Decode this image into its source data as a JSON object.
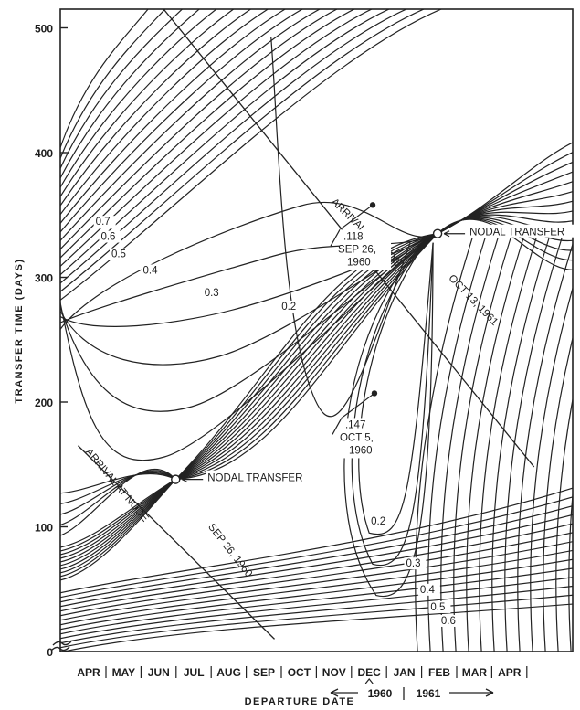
{
  "chart_data": {
    "type": "line",
    "title": "",
    "xlabel": "DEPARTURE DATE",
    "ylabel": "TRANSFER TIME (DAYS)",
    "ylim": [
      0,
      550
    ],
    "y_ticks": [
      "0",
      "100",
      "200",
      "300",
      "400",
      "500"
    ],
    "y_tick_values": [
      0,
      100,
      200,
      300,
      400,
      500
    ],
    "x_ticks": [
      "APR",
      "MAY",
      "JUN",
      "JUL",
      "AUG",
      "SEP",
      "OCT",
      "NOV",
      "DEC",
      "JAN",
      "FEB",
      "MAR",
      "APR"
    ],
    "year_labels": [
      "1960",
      "1961"
    ],
    "grid": false,
    "legend": "none",
    "contour_levels": [
      0.2,
      0.3,
      0.4,
      0.5,
      0.6,
      0.7
    ],
    "contour_labels": [
      {
        "text": "0.7",
        "x": 0.2,
        "y": 342
      },
      {
        "text": "0.6",
        "x": 0.35,
        "y": 330
      },
      {
        "text": "0.5",
        "x": 0.65,
        "y": 316
      },
      {
        "text": "0.4",
        "x": 1.55,
        "y": 303
      },
      {
        "text": "0.3",
        "x": 3.3,
        "y": 285
      },
      {
        "text": "0.2",
        "x": 5.5,
        "y": 274
      },
      {
        "text": "0.2",
        "x": 8.05,
        "y": 102
      },
      {
        "text": "0.3",
        "x": 9.05,
        "y": 68
      },
      {
        "text": "0.4",
        "x": 9.45,
        "y": 47
      },
      {
        "text": "0.5",
        "x": 9.75,
        "y": 33
      },
      {
        "text": "0.6",
        "x": 10.05,
        "y": 22
      }
    ],
    "reference_lines": [
      {
        "name": "ARRIVAL AT NODE",
        "points": [
          [
            0.5,
            572
          ],
          [
            12.7,
            148
          ]
        ]
      },
      {
        "name": "ARRIVAL AT NODE",
        "points": [
          [
            -0.3,
            165
          ],
          [
            5.3,
            10
          ]
        ]
      }
    ],
    "reference_line_labels": [
      {
        "text": "ARRIVAL AT NODE",
        "x": 6.9,
        "y": 360,
        "angle": 44
      },
      {
        "text": "OCT 13, 1961",
        "x": 10.25,
        "y": 299,
        "angle": 46
      },
      {
        "text": "ARRIVAL AT NODE",
        "x": -0.1,
        "y": 160,
        "angle": 50
      },
      {
        "text": "SEP 26, 1960",
        "x": 3.4,
        "y": 100,
        "angle": 52
      }
    ],
    "nodal_points": [
      {
        "label": "NODAL TRANSFER",
        "x": 2.48,
        "y": 138
      },
      {
        "label": "NODAL TRANSFER",
        "x": 9.95,
        "y": 335
      }
    ],
    "minima": [
      {
        "value": ".118",
        "date": "SEP 26,",
        "year": "1960",
        "x": 8.1,
        "y": 358
      },
      {
        "value": ".147",
        "date": "OCT 5,",
        "year": "1960",
        "x": 8.15,
        "y": 207
      }
    ]
  }
}
